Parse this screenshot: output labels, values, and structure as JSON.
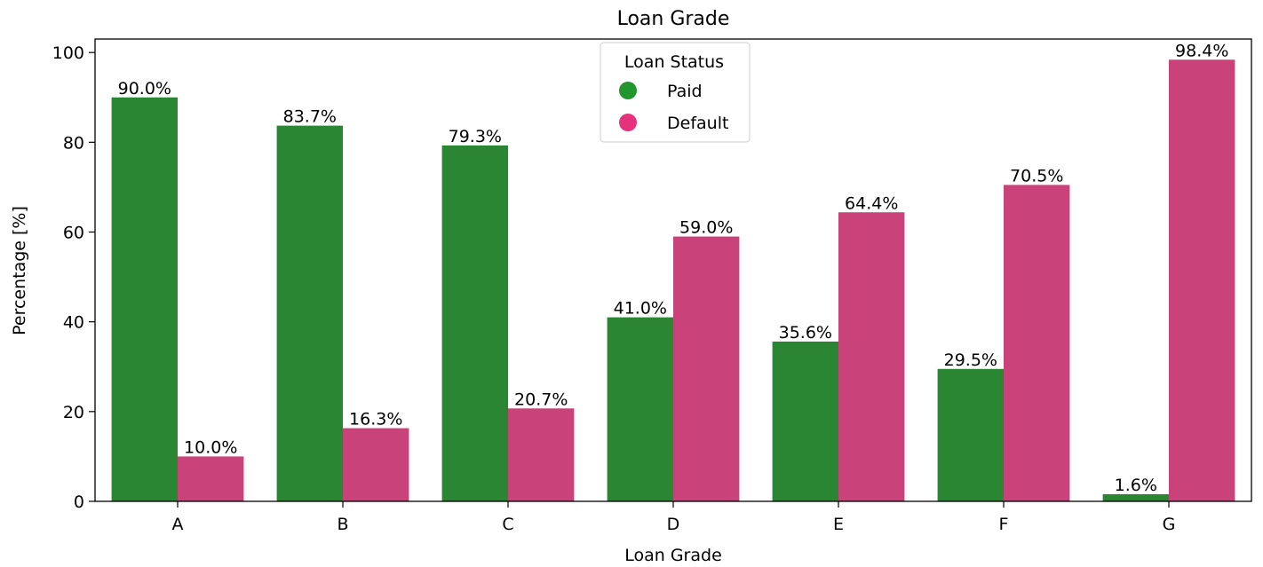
{
  "chart_data": {
    "type": "bar",
    "title": "Loan Grade",
    "xlabel": "Loan Grade",
    "ylabel": "Percentage [%]",
    "categories": [
      "A",
      "B",
      "C",
      "D",
      "E",
      "F",
      "G"
    ],
    "ylim": [
      0,
      103
    ],
    "yticks": [
      0,
      20,
      40,
      60,
      80,
      100
    ],
    "grid": false,
    "series": [
      {
        "name": "Paid",
        "color": "#2a8633",
        "values": [
          90.0,
          83.7,
          79.3,
          41.0,
          35.6,
          29.5,
          1.6
        ],
        "labels": [
          "90.0%",
          "83.7%",
          "79.3%",
          "41.0%",
          "35.6%",
          "29.5%",
          "1.6%"
        ]
      },
      {
        "name": "Default",
        "color": "#c94279",
        "values": [
          10.0,
          16.3,
          20.7,
          59.0,
          64.4,
          70.5,
          98.4
        ],
        "labels": [
          "10.0%",
          "16.3%",
          "20.7%",
          "59.0%",
          "64.4%",
          "70.5%",
          "98.4%"
        ]
      }
    ],
    "legend": {
      "title": "Loan Status",
      "placement": "top-center",
      "entries": [
        {
          "label": "Paid",
          "color": "#21962d"
        },
        {
          "label": "Default",
          "color": "#e6327a"
        }
      ]
    }
  }
}
